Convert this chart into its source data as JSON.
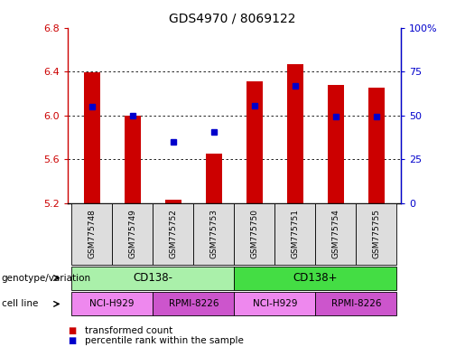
{
  "title": "GDS4970 / 8069122",
  "samples": [
    "GSM775748",
    "GSM775749",
    "GSM775752",
    "GSM775753",
    "GSM775750",
    "GSM775751",
    "GSM775754",
    "GSM775755"
  ],
  "bar_values": [
    6.39,
    6.0,
    5.23,
    5.65,
    6.31,
    6.47,
    6.28,
    6.25
  ],
  "blue_values": [
    6.08,
    6.0,
    5.76,
    5.85,
    6.09,
    6.27,
    5.99,
    5.99
  ],
  "ymin": 5.2,
  "ymax": 6.8,
  "yticks_left": [
    5.2,
    5.6,
    6.0,
    6.4,
    6.8
  ],
  "right_yticks_pct": [
    0,
    25,
    50,
    75,
    100
  ],
  "bar_color": "#cc0000",
  "blue_color": "#0000cc",
  "bar_bottom": 5.2,
  "groups": [
    {
      "label": "CD138-",
      "start": 0,
      "end": 4,
      "color": "#aaf0aa"
    },
    {
      "label": "CD138+",
      "start": 4,
      "end": 8,
      "color": "#44dd44"
    }
  ],
  "cell_lines": [
    {
      "label": "NCI-H929",
      "start": 0,
      "end": 2,
      "color": "#ee88ee"
    },
    {
      "label": "RPMI-8226",
      "start": 2,
      "end": 4,
      "color": "#cc55cc"
    },
    {
      "label": "NCI-H929",
      "start": 4,
      "end": 6,
      "color": "#ee88ee"
    },
    {
      "label": "RPMI-8226",
      "start": 6,
      "end": 8,
      "color": "#cc55cc"
    }
  ],
  "legend_bar_label": "transformed count",
  "legend_blue_label": "percentile rank within the sample",
  "genotype_label": "genotype/variation",
  "cellline_label": "cell line",
  "title_fontsize": 10,
  "tick_fontsize": 8,
  "bar_width": 0.4
}
